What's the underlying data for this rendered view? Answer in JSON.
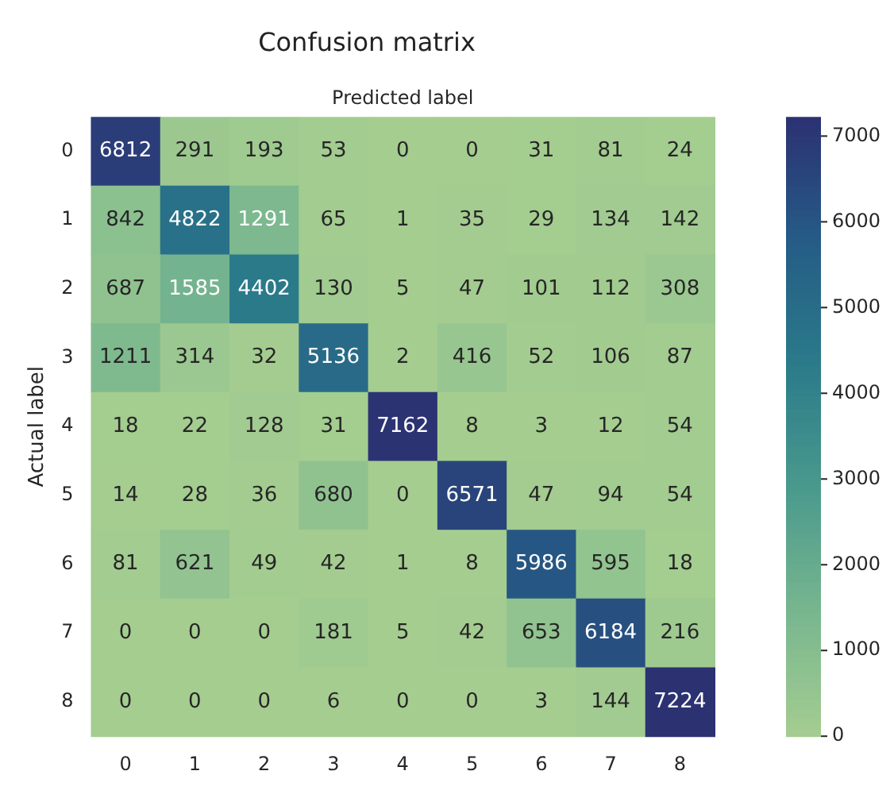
{
  "chart_data": {
    "type": "heatmap",
    "title": "Confusion matrix",
    "xlabel": "Predicted label",
    "ylabel": "Actual label",
    "categories": [
      "0",
      "1",
      "2",
      "3",
      "4",
      "5",
      "6",
      "7",
      "8"
    ],
    "y_categories": [
      "0",
      "1",
      "2",
      "3",
      "4",
      "5",
      "6",
      "7",
      "8"
    ],
    "cells": [
      [
        6812,
        291,
        193,
        53,
        0,
        0,
        31,
        81,
        24
      ],
      [
        842,
        4822,
        1291,
        65,
        1,
        35,
        29,
        134,
        142
      ],
      [
        687,
        1585,
        4402,
        130,
        5,
        47,
        101,
        112,
        308
      ],
      [
        1211,
        314,
        32,
        5136,
        2,
        416,
        52,
        106,
        87
      ],
      [
        18,
        22,
        128,
        31,
        7162,
        8,
        3,
        12,
        54
      ],
      [
        14,
        28,
        36,
        680,
        0,
        6571,
        47,
        94,
        54
      ],
      [
        81,
        621,
        49,
        42,
        1,
        8,
        5986,
        595,
        18
      ],
      [
        0,
        0,
        0,
        181,
        5,
        42,
        653,
        6184,
        216
      ],
      [
        0,
        0,
        0,
        6,
        0,
        0,
        3,
        144,
        7224
      ]
    ],
    "clim": [
      0,
      7224
    ],
    "cticks": [
      0,
      1000,
      2000,
      3000,
      4000,
      5000,
      6000,
      7000
    ],
    "data_labels": true
  }
}
